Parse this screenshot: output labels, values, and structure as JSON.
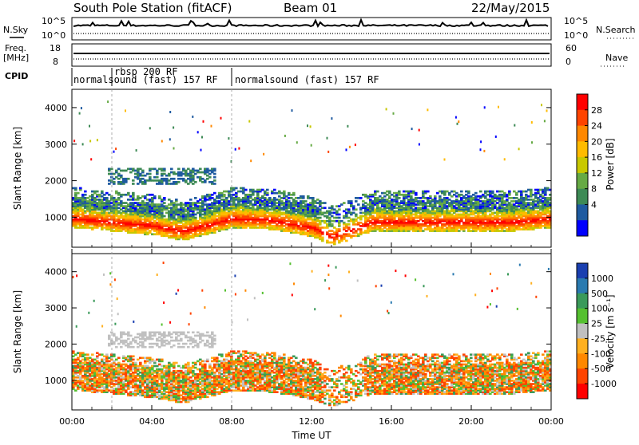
{
  "header": {
    "station": "South Pole Station (fitACF)",
    "beam": "Beam 01",
    "date": "22/May/2015"
  },
  "top_panels": {
    "nsky_label": "N.Sky",
    "nsearch_label": "N.Search",
    "freq_label_1": "Freq.",
    "freq_label_2": "[MHz]",
    "nave_label": "Nave",
    "cpid_label": "CPID",
    "sky_ticks": [
      "10^5",
      "10^0"
    ],
    "freq_ticks": [
      "18",
      "8"
    ],
    "nave_ticks": [
      "60",
      "0"
    ],
    "cpid_modes": [
      {
        "label": "normalsound (fast) 157 RF",
        "start": "00:00",
        "end": "02:00"
      },
      {
        "label": "rbsp 200 RF",
        "start": "02:00",
        "end": "08:00"
      },
      {
        "label": "normalsound (fast) 157 RF",
        "start": "02:00",
        "end": "08:00"
      },
      {
        "label": "normalsound (fast) 157 RF",
        "start": "08:00",
        "end": "24:00"
      }
    ]
  },
  "power_panel": {
    "ylabel": "Slant Range [km]",
    "cbar_label": "Power [dB]",
    "cbar_ticks": [
      "28",
      "24",
      "20",
      "16",
      "12",
      "8",
      "4"
    ],
    "colors": [
      "#ff0000",
      "#ff4400",
      "#ff8800",
      "#ffbb00",
      "#c8c800",
      "#66aa44",
      "#3d8a55",
      "#1e5aa0",
      "#0000ff"
    ]
  },
  "velocity_panel": {
    "ylabel": "Slant Range [km]",
    "cbar_label": "Velocity [m s⁻¹]",
    "cbar_ticks": [
      "1000",
      "500",
      "100",
      "25",
      "-25",
      "-100",
      "-500",
      "-1000"
    ],
    "colors": [
      "#1a3fb0",
      "#2a7ab0",
      "#3a9a5a",
      "#55c030",
      "#c0c0c0",
      "#ffb020",
      "#ff8800",
      "#ff4400",
      "#ff0000"
    ]
  },
  "xaxis": {
    "label": "Time UT",
    "ticks": [
      "00:00",
      "04:00",
      "08:00",
      "12:00",
      "16:00",
      "20:00",
      "00:00"
    ]
  },
  "chart_data": {
    "type": "heatmap",
    "x_unit": "hours UT",
    "xlim": [
      0,
      24
    ],
    "ylim": [
      180,
      4500
    ],
    "yticks": [
      1000,
      2000,
      3000,
      4000
    ],
    "xticks_hours": [
      0,
      4,
      8,
      12,
      16,
      20,
      24
    ],
    "power_centroid_km": [
      [
        0,
        1000
      ],
      [
        2,
        900
      ],
      [
        4,
        800
      ],
      [
        5.5,
        650
      ],
      [
        7,
        850
      ],
      [
        8,
        1000
      ],
      [
        10,
        950
      ],
      [
        12,
        750
      ],
      [
        13,
        500
      ],
      [
        15,
        900
      ],
      [
        18,
        900
      ],
      [
        22,
        900
      ],
      [
        24,
        1000
      ]
    ],
    "power_scale_db": [
      4,
      28
    ],
    "velocity_scale_ms": [
      -1000,
      1000
    ],
    "scatter_band_km": [
      [
        0,
        1000,
        1700
      ],
      [
        8,
        900,
        1600
      ],
      [
        13,
        400,
        800
      ],
      [
        18,
        800,
        1700
      ]
    ],
    "upper_scatter_km": [
      [
        2,
        1950,
        2300
      ],
      [
        4,
        1950,
        2300
      ],
      [
        6,
        2000,
        2300
      ]
    ]
  }
}
